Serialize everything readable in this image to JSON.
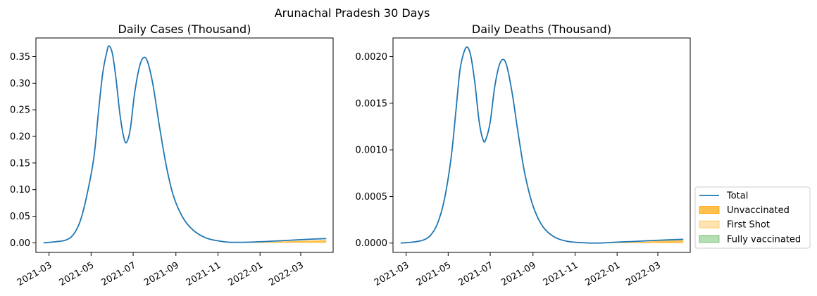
{
  "suptitle": "Arunachal Pradesh 30 Days",
  "colors": {
    "total": "#1f77b4",
    "unvaccinated": "#ffa500",
    "first_shot": "#ffa500",
    "fully_vaccinated": "#2ca02c"
  },
  "legend": {
    "placement": "lower-right outside",
    "entries": [
      {
        "label": "Total",
        "kind": "line",
        "color": "#1f77b4"
      },
      {
        "label": "Unvaccinated",
        "kind": "patch",
        "color": "#ffa500",
        "opacity": 0.7
      },
      {
        "label": "First Shot",
        "kind": "patch",
        "color": "#ffa500",
        "opacity": 0.3
      },
      {
        "label": "Fully vaccinated",
        "kind": "patch",
        "color": "#2ca02c",
        "opacity": 0.35
      }
    ]
  },
  "chart_data": [
    {
      "type": "line",
      "title": "Daily Cases (Thousand)",
      "xlabel": "",
      "ylabel": "",
      "x_ticks": [
        "2021-03",
        "2021-05",
        "2021-07",
        "2021-09",
        "2021-11",
        "2022-01",
        "2022-03"
      ],
      "y_ticks": [
        "0.00",
        "0.05",
        "0.10",
        "0.15",
        "0.20",
        "0.25",
        "0.30",
        "0.35"
      ],
      "xlim": [
        "2021-02-10",
        "2022-04-17"
      ],
      "ylim": [
        -0.018,
        0.385
      ],
      "grid": false,
      "series": [
        {
          "name": "Total",
          "points": [
            [
              "2021-02-21",
              0.0
            ],
            [
              "2021-03-10",
              0.002
            ],
            [
              "2021-03-25",
              0.005
            ],
            [
              "2021-04-05",
              0.015
            ],
            [
              "2021-04-15",
              0.04
            ],
            [
              "2021-04-25",
              0.09
            ],
            [
              "2021-05-05",
              0.16
            ],
            [
              "2021-05-12",
              0.25
            ],
            [
              "2021-05-18",
              0.32
            ],
            [
              "2021-05-24",
              0.36
            ],
            [
              "2021-05-27",
              0.37
            ],
            [
              "2021-06-01",
              0.355
            ],
            [
              "2021-06-06",
              0.31
            ],
            [
              "2021-06-12",
              0.24
            ],
            [
              "2021-06-18",
              0.195
            ],
            [
              "2021-06-22",
              0.19
            ],
            [
              "2021-06-27",
              0.215
            ],
            [
              "2021-07-03",
              0.28
            ],
            [
              "2021-07-10",
              0.33
            ],
            [
              "2021-07-16",
              0.348
            ],
            [
              "2021-07-22",
              0.34
            ],
            [
              "2021-07-30",
              0.295
            ],
            [
              "2021-08-08",
              0.22
            ],
            [
              "2021-08-18",
              0.145
            ],
            [
              "2021-08-28",
              0.09
            ],
            [
              "2021-09-10",
              0.05
            ],
            [
              "2021-09-25",
              0.025
            ],
            [
              "2021-10-15",
              0.009
            ],
            [
              "2021-11-10",
              0.002
            ],
            [
              "2021-12-01",
              0.001
            ],
            [
              "2022-01-01",
              0.002
            ],
            [
              "2022-02-01",
              0.004
            ],
            [
              "2022-03-01",
              0.006
            ],
            [
              "2022-04-07",
              0.008
            ]
          ]
        },
        {
          "name": "Unvaccinated",
          "points": [
            [
              "2021-11-10",
              0.0
            ],
            [
              "2021-12-01",
              0.0004
            ],
            [
              "2022-01-01",
              0.0012
            ],
            [
              "2022-02-01",
              0.0025
            ],
            [
              "2022-03-01",
              0.0038
            ],
            [
              "2022-04-07",
              0.0052
            ]
          ]
        }
      ]
    },
    {
      "type": "line",
      "title": "Daily Deaths (Thousand)",
      "xlabel": "",
      "ylabel": "",
      "x_ticks": [
        "2021-03",
        "2021-05",
        "2021-07",
        "2021-09",
        "2021-11",
        "2022-01",
        "2022-03"
      ],
      "y_ticks": [
        "0.0000",
        "0.0005",
        "0.0010",
        "0.0015",
        "0.0020"
      ],
      "xlim": [
        "2021-02-10",
        "2022-04-17"
      ],
      "ylim": [
        -0.0001,
        0.0022
      ],
      "grid": false,
      "series": [
        {
          "name": "Total",
          "points": [
            [
              "2021-02-21",
              0.0
            ],
            [
              "2021-03-10",
              1e-05
            ],
            [
              "2021-03-25",
              3e-05
            ],
            [
              "2021-04-05",
              8e-05
            ],
            [
              "2021-04-15",
              0.0002
            ],
            [
              "2021-04-25",
              0.00045
            ],
            [
              "2021-05-05",
              0.0009
            ],
            [
              "2021-05-12",
              0.0014
            ],
            [
              "2021-05-18",
              0.00185
            ],
            [
              "2021-05-24",
              0.00205
            ],
            [
              "2021-05-29",
              0.0021
            ],
            [
              "2021-06-03",
              0.002
            ],
            [
              "2021-06-09",
              0.0017
            ],
            [
              "2021-06-15",
              0.0013
            ],
            [
              "2021-06-21",
              0.0011
            ],
            [
              "2021-06-25",
              0.00112
            ],
            [
              "2021-07-01",
              0.0013
            ],
            [
              "2021-07-07",
              0.00165
            ],
            [
              "2021-07-13",
              0.00188
            ],
            [
              "2021-07-19",
              0.00197
            ],
            [
              "2021-07-25",
              0.0019
            ],
            [
              "2021-08-02",
              0.0016
            ],
            [
              "2021-08-10",
              0.0012
            ],
            [
              "2021-08-20",
              0.00075
            ],
            [
              "2021-09-01",
              0.0004
            ],
            [
              "2021-09-15",
              0.00018
            ],
            [
              "2021-10-01",
              7e-05
            ],
            [
              "2021-10-20",
              2e-05
            ],
            [
              "2021-11-15",
              3e-06
            ],
            [
              "2021-12-05",
              0.0
            ],
            [
              "2022-01-01",
              1e-05
            ],
            [
              "2022-02-01",
              2e-05
            ],
            [
              "2022-03-01",
              3e-05
            ],
            [
              "2022-04-07",
              4e-05
            ]
          ]
        },
        {
          "name": "Unvaccinated",
          "points": [
            [
              "2021-11-15",
              0.0
            ],
            [
              "2021-12-05",
              0.0
            ],
            [
              "2022-01-01",
              5e-06
            ],
            [
              "2022-02-01",
              1.2e-05
            ],
            [
              "2022-03-01",
              2.2e-05
            ],
            [
              "2022-04-07",
              3e-05
            ]
          ]
        }
      ]
    }
  ]
}
